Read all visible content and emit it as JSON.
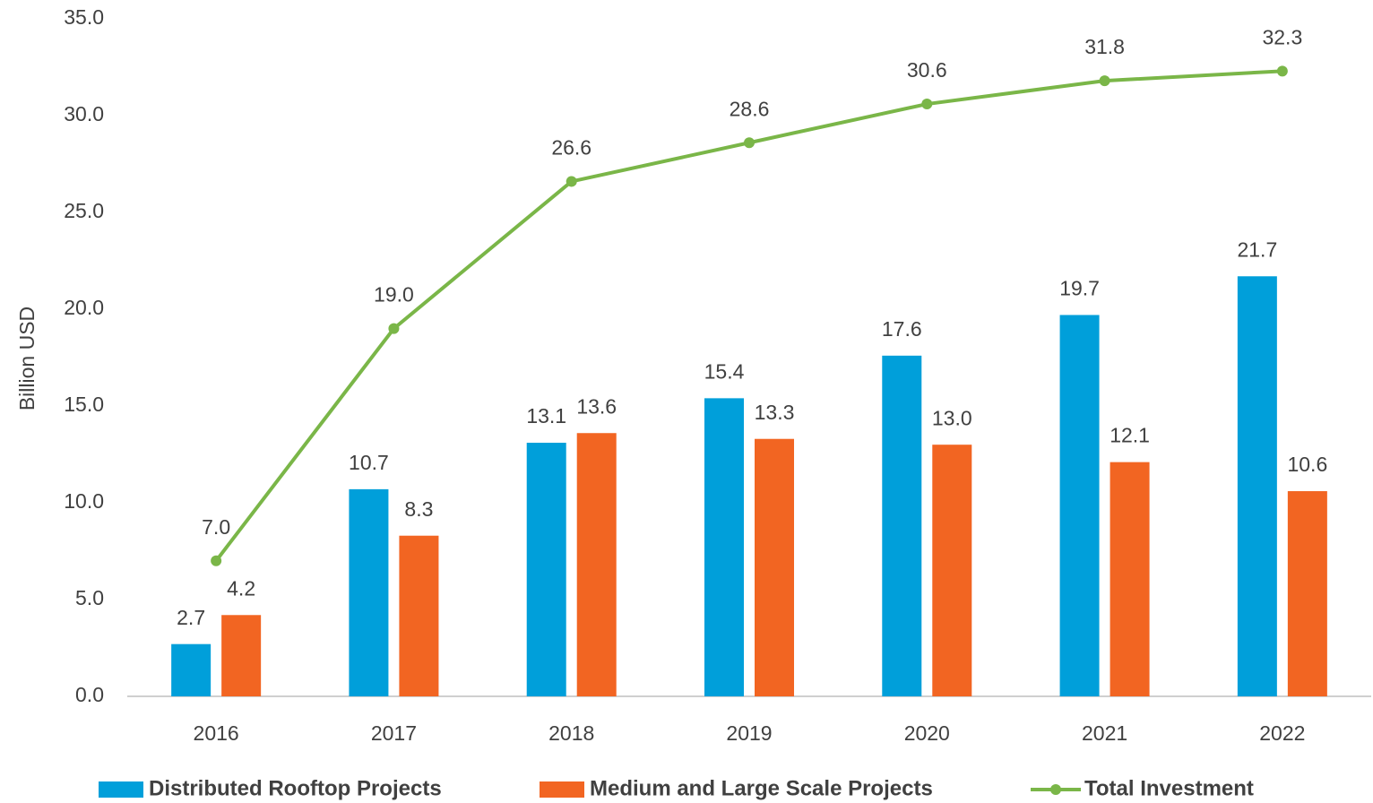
{
  "chart_data": {
    "type": "bar",
    "y_label": "Billion USD",
    "categories": [
      "2016",
      "2017",
      "2018",
      "2019",
      "2020",
      "2021",
      "2022"
    ],
    "series": [
      {
        "name": "Distributed Rooftop Projects",
        "type": "bar",
        "color": "#009fda",
        "values": [
          2.7,
          10.7,
          13.1,
          15.4,
          17.6,
          19.7,
          21.7
        ],
        "value_labels": [
          "2.7",
          "10.7",
          "13.1",
          "15.4",
          "17.6",
          "19.7",
          "21.7"
        ]
      },
      {
        "name": "Medium and Large Scale Projects",
        "type": "bar",
        "color": "#f26522",
        "values": [
          4.2,
          8.3,
          13.6,
          13.3,
          13.0,
          12.1,
          10.6
        ],
        "value_labels": [
          "4.2",
          "8.3",
          "13.6",
          "13.3",
          "13.0",
          "12.1",
          "10.6"
        ]
      },
      {
        "name": "Total Investment",
        "type": "line",
        "color": "#7ab648",
        "values": [
          7.0,
          19.0,
          26.6,
          28.6,
          30.6,
          31.8,
          32.3
        ],
        "value_labels": [
          "7.0",
          "19.0",
          "26.6",
          "28.6",
          "30.6",
          "31.8",
          "32.3"
        ]
      }
    ],
    "ylim": [
      0,
      35
    ],
    "yticks": [
      {
        "value": 0,
        "label": "0.0"
      },
      {
        "value": 5,
        "label": "5.0"
      },
      {
        "value": 10,
        "label": "10.0"
      },
      {
        "value": 15,
        "label": "15.0"
      },
      {
        "value": 20,
        "label": "20.0"
      },
      {
        "value": 25,
        "label": "25.0"
      },
      {
        "value": 30,
        "label": "30.0"
      },
      {
        "value": 35,
        "label": "35.0"
      }
    ],
    "grid": false,
    "legend": "bottom"
  }
}
